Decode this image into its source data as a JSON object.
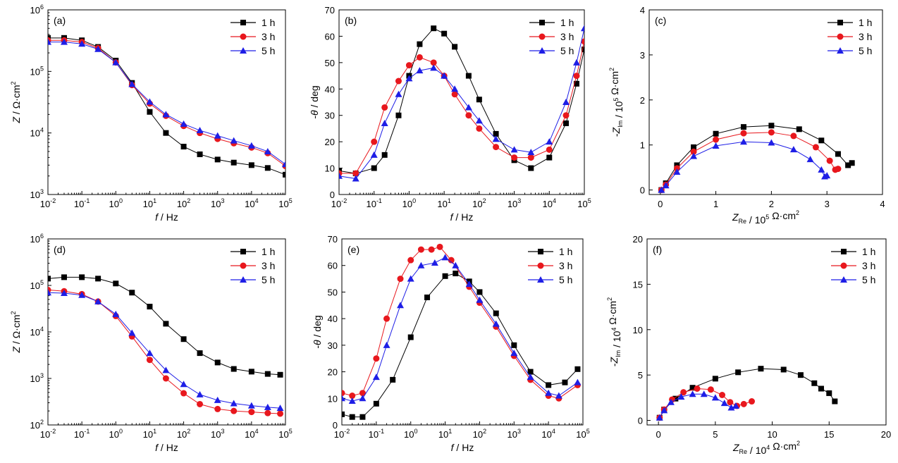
{
  "chart_data": [
    {
      "id": "a",
      "type": "scatter",
      "panel_label": "(a)",
      "xlabel": "f / Hz",
      "ylabel": "Z / Ω·cm²",
      "x_scale": "log",
      "y_scale": "log",
      "xlim": [
        0.01,
        100000
      ],
      "ylim": [
        1000,
        1000000
      ],
      "grid": false,
      "legend_position": "top-right",
      "series": [
        {
          "name": "1 h",
          "color": "#000000",
          "marker": "square",
          "x": [
            0.01,
            0.03,
            0.1,
            0.3,
            1,
            3,
            10,
            30,
            100,
            300,
            1000,
            3000,
            10000,
            30000,
            100000
          ],
          "y": [
            350000,
            350000,
            320000,
            250000,
            150000,
            65000,
            22000,
            10000,
            6000,
            4500,
            3700,
            3300,
            3000,
            2700,
            2100
          ]
        },
        {
          "name": "3 h",
          "color": "#e8171d",
          "marker": "circle",
          "x": [
            0.01,
            0.03,
            0.1,
            0.3,
            1,
            3,
            10,
            30,
            100,
            300,
            1000,
            3000,
            10000,
            30000,
            100000
          ],
          "y": [
            320000,
            320000,
            300000,
            240000,
            140000,
            60000,
            30000,
            19000,
            13000,
            10000,
            8000,
            6800,
            5800,
            4700,
            2900
          ]
        },
        {
          "name": "5 h",
          "color": "#1e1ee6",
          "marker": "triangle",
          "x": [
            0.01,
            0.03,
            0.1,
            0.3,
            1,
            3,
            10,
            30,
            100,
            300,
            1000,
            3000,
            10000,
            30000,
            100000
          ],
          "y": [
            300000,
            300000,
            280000,
            230000,
            140000,
            62000,
            32000,
            20000,
            14000,
            11000,
            9000,
            7500,
            6200,
            5000,
            3100
          ]
        }
      ]
    },
    {
      "id": "b",
      "type": "scatter",
      "panel_label": "(b)",
      "xlabel": "f / Hz",
      "ylabel": "-θ / deg",
      "x_scale": "log",
      "y_scale": "linear",
      "xlim": [
        0.01,
        100000
      ],
      "ylim": [
        0,
        70
      ],
      "ytick_values": [
        0,
        10,
        20,
        30,
        40,
        50,
        60,
        70
      ],
      "grid": false,
      "legend_position": "top-right",
      "series": [
        {
          "name": "1 h",
          "color": "#000000",
          "marker": "square",
          "x": [
            0.01,
            0.03,
            0.1,
            0.2,
            0.5,
            1,
            2,
            5,
            10,
            20,
            50,
            100,
            300,
            1000,
            3000,
            10000,
            30000,
            60000,
            100000
          ],
          "y": [
            9,
            8,
            10,
            15,
            30,
            45,
            57,
            63,
            61,
            56,
            45,
            36,
            23,
            13,
            10,
            14,
            27,
            42,
            55
          ]
        },
        {
          "name": "3 h",
          "color": "#e8171d",
          "marker": "circle",
          "x": [
            0.01,
            0.03,
            0.1,
            0.2,
            0.5,
            1,
            2,
            5,
            10,
            20,
            50,
            100,
            300,
            1000,
            3000,
            10000,
            30000,
            60000,
            100000
          ],
          "y": [
            8,
            8,
            20,
            33,
            43,
            49,
            52,
            50,
            45,
            38,
            30,
            25,
            18,
            14,
            14,
            17,
            30,
            45,
            58
          ]
        },
        {
          "name": "5 h",
          "color": "#1e1ee6",
          "marker": "triangle",
          "x": [
            0.01,
            0.03,
            0.1,
            0.2,
            0.5,
            1,
            2,
            5,
            10,
            20,
            50,
            100,
            300,
            1000,
            3000,
            10000,
            30000,
            60000,
            100000
          ],
          "y": [
            7,
            6,
            15,
            27,
            38,
            44,
            47,
            48,
            45,
            40,
            33,
            28,
            21,
            17,
            16,
            20,
            35,
            50,
            63
          ]
        }
      ]
    },
    {
      "id": "c",
      "type": "line",
      "panel_label": "(c)",
      "xlabel": "Z_Re / 10⁵ Ω·cm²",
      "ylabel": "-Z_Im / 10⁵ Ω·cm²",
      "x_scale": "linear",
      "y_scale": "linear",
      "xlim": [
        -0.2,
        4
      ],
      "ylim": [
        -0.1,
        4
      ],
      "xtick_values": [
        0,
        1,
        2,
        3,
        4
      ],
      "ytick_values": [
        0,
        1,
        2,
        3,
        4
      ],
      "grid": false,
      "legend_position": "top-right",
      "series": [
        {
          "name": "1 h",
          "color": "#000000",
          "marker": "square",
          "x": [
            0.02,
            0.1,
            0.3,
            0.6,
            1.0,
            1.5,
            2.0,
            2.5,
            2.9,
            3.2,
            3.38,
            3.45
          ],
          "y": [
            0.0,
            0.15,
            0.55,
            0.95,
            1.25,
            1.4,
            1.43,
            1.35,
            1.1,
            0.8,
            0.55,
            0.6
          ]
        },
        {
          "name": "3 h",
          "color": "#e8171d",
          "marker": "circle",
          "x": [
            0.02,
            0.1,
            0.3,
            0.6,
            1.0,
            1.5,
            2.0,
            2.4,
            2.8,
            3.05,
            3.15,
            3.2
          ],
          "y": [
            0.0,
            0.12,
            0.48,
            0.85,
            1.12,
            1.26,
            1.28,
            1.2,
            0.95,
            0.65,
            0.45,
            0.47
          ]
        },
        {
          "name": "5 h",
          "color": "#1e1ee6",
          "marker": "triangle",
          "x": [
            0.02,
            0.1,
            0.3,
            0.6,
            1.0,
            1.5,
            2.0,
            2.4,
            2.7,
            2.9,
            2.96,
            3.0
          ],
          "y": [
            0.0,
            0.1,
            0.4,
            0.75,
            0.98,
            1.07,
            1.05,
            0.9,
            0.68,
            0.45,
            0.3,
            0.32
          ]
        }
      ]
    },
    {
      "id": "d",
      "type": "scatter",
      "panel_label": "(d)",
      "xlabel": "f / Hz",
      "ylabel": "Z / Ω·cm²",
      "x_scale": "log",
      "y_scale": "log",
      "xlim": [
        0.01,
        100000
      ],
      "ylim": [
        100,
        1000000
      ],
      "grid": false,
      "legend_position": "top-right",
      "series": [
        {
          "name": "1 h",
          "color": "#000000",
          "marker": "square",
          "x": [
            0.01,
            0.03,
            0.1,
            0.3,
            1,
            3,
            10,
            30,
            100,
            300,
            1000,
            3000,
            10000,
            30000,
            70000
          ],
          "y": [
            140000,
            150000,
            150000,
            140000,
            110000,
            70000,
            35000,
            15000,
            7000,
            3500,
            2200,
            1600,
            1400,
            1250,
            1200
          ]
        },
        {
          "name": "3 h",
          "color": "#e8171d",
          "marker": "circle",
          "x": [
            0.01,
            0.03,
            0.1,
            0.3,
            1,
            3,
            10,
            30,
            100,
            300,
            1000,
            3000,
            10000,
            30000,
            70000
          ],
          "y": [
            80000,
            75000,
            65000,
            45000,
            22000,
            8000,
            2500,
            1000,
            480,
            280,
            220,
            200,
            190,
            180,
            175
          ]
        },
        {
          "name": "5 h",
          "color": "#1e1ee6",
          "marker": "triangle",
          "x": [
            0.01,
            0.03,
            0.1,
            0.3,
            1,
            3,
            10,
            30,
            100,
            300,
            1000,
            3000,
            10000,
            30000,
            70000
          ],
          "y": [
            70000,
            68000,
            62000,
            45000,
            24000,
            9500,
            3500,
            1500,
            750,
            450,
            340,
            290,
            260,
            240,
            230
          ]
        }
      ]
    },
    {
      "id": "e",
      "type": "scatter",
      "panel_label": "(e)",
      "xlabel": "f / Hz",
      "ylabel": "-θ / deg",
      "x_scale": "log",
      "y_scale": "linear",
      "xlim": [
        0.01,
        100000
      ],
      "ylim": [
        0,
        70
      ],
      "ytick_values": [
        0,
        10,
        20,
        30,
        40,
        50,
        60,
        70
      ],
      "grid": false,
      "legend_position": "top-right",
      "series": [
        {
          "name": "1 h",
          "color": "#000000",
          "marker": "square",
          "x": [
            0.01,
            0.02,
            0.04,
            0.1,
            0.3,
            1,
            3,
            10,
            20,
            50,
            100,
            300,
            1000,
            3000,
            10000,
            30000,
            70000
          ],
          "y": [
            4,
            3,
            3,
            8,
            17,
            33,
            48,
            56,
            57,
            54,
            50,
            42,
            30,
            20,
            15,
            16,
            21
          ]
        },
        {
          "name": "3 h",
          "color": "#e8171d",
          "marker": "circle",
          "x": [
            0.01,
            0.02,
            0.04,
            0.1,
            0.2,
            0.5,
            1,
            2,
            4,
            7,
            15,
            50,
            100,
            300,
            1000,
            3000,
            10000,
            20000,
            70000
          ],
          "y": [
            12,
            11,
            12,
            25,
            40,
            55,
            62,
            66,
            66,
            67,
            62,
            52,
            46,
            37,
            26,
            17,
            11,
            10,
            15
          ]
        },
        {
          "name": "5 h",
          "color": "#1e1ee6",
          "marker": "triangle",
          "x": [
            0.01,
            0.02,
            0.04,
            0.1,
            0.2,
            0.5,
            1,
            2,
            5,
            10,
            20,
            50,
            100,
            300,
            1000,
            3000,
            10000,
            20000,
            70000
          ],
          "y": [
            10,
            9,
            10,
            18,
            30,
            45,
            55,
            60,
            61,
            63,
            60,
            53,
            47,
            38,
            27,
            18,
            12,
            11,
            16
          ]
        }
      ]
    },
    {
      "id": "f",
      "type": "line",
      "panel_label": "(f)",
      "xlabel": "Z_Re / 10⁴ Ω·cm²",
      "ylabel": "-Z_Im / 10⁴ Ω·cm²",
      "x_scale": "linear",
      "y_scale": "linear",
      "xlim": [
        -1,
        20
      ],
      "ylim": [
        -0.5,
        20
      ],
      "xtick_values": [
        0,
        5,
        10,
        15,
        20
      ],
      "ytick_values": [
        0,
        5,
        10,
        15,
        20
      ],
      "grid": false,
      "legend_position": "top-right",
      "series": [
        {
          "name": "1 h",
          "color": "#000000",
          "marker": "square",
          "x": [
            0.1,
            0.5,
            1.5,
            3,
            5,
            7,
            9,
            11,
            12.5,
            13.7,
            14.3,
            15,
            15.5
          ],
          "y": [
            0.3,
            1.2,
            2.4,
            3.6,
            4.6,
            5.3,
            5.7,
            5.6,
            5.0,
            4.1,
            3.5,
            3.0,
            2.1
          ]
        },
        {
          "name": "3 h",
          "color": "#e8171d",
          "marker": "circle",
          "x": [
            0.1,
            0.5,
            1.2,
            2.2,
            3.4,
            4.6,
            5.6,
            6.3,
            6.9,
            7.5,
            8.2
          ],
          "y": [
            0.3,
            1.2,
            2.3,
            3.1,
            3.5,
            3.4,
            2.8,
            2.0,
            1.6,
            1.8,
            2.1
          ]
        },
        {
          "name": "5 h",
          "color": "#1e1ee6",
          "marker": "triangle",
          "x": [
            0.1,
            0.5,
            1.1,
            2,
            3,
            4,
            5,
            5.8,
            6.4,
            6.8
          ],
          "y": [
            0.3,
            1.1,
            2.0,
            2.6,
            2.9,
            2.9,
            2.5,
            1.9,
            1.4,
            1.6
          ]
        }
      ]
    }
  ]
}
